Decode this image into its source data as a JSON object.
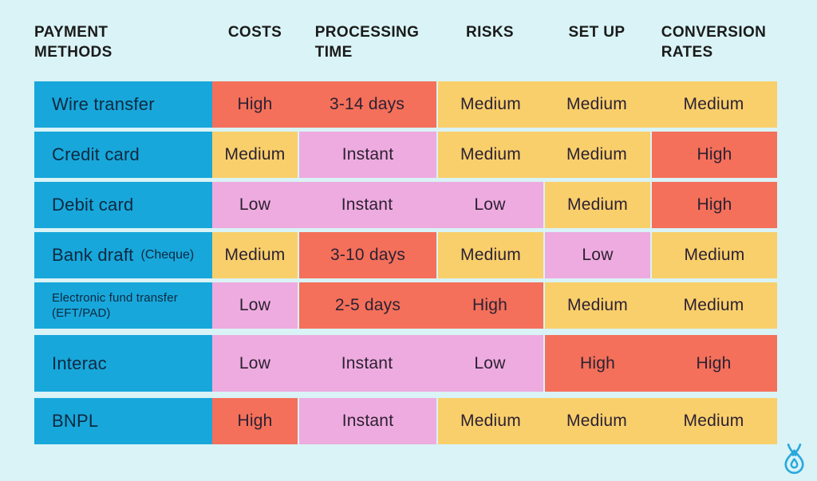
{
  "palette": {
    "page_background": "#d9f3f6",
    "method_cell": "#18a7db",
    "high_orange": "#f4705a",
    "medium_yellow": "#f9cf6b",
    "low_pink": "#eeabdf",
    "logo_blue": "#29a8dd"
  },
  "chart_data": {
    "type": "table",
    "title": "Payment methods comparison",
    "columns": [
      {
        "key": "payment_methods",
        "label": "PAYMENT\nMETHODS"
      },
      {
        "key": "costs",
        "label": "COSTS"
      },
      {
        "key": "processing_time",
        "label": "PROCESSING\nTIME"
      },
      {
        "key": "risks",
        "label": "RISKS"
      },
      {
        "key": "set_up",
        "label": "SET UP"
      },
      {
        "key": "conversion_rates",
        "label": "CONVERSION\nRATES"
      }
    ],
    "rows": [
      {
        "method": "Wire transfer",
        "note": "",
        "cells": [
          {
            "column": "costs",
            "value": "High",
            "color": "orange"
          },
          {
            "column": "processing_time",
            "value": "3-14 days",
            "color": "orange"
          },
          {
            "column": "risks",
            "value": "Medium",
            "color": "yellow"
          },
          {
            "column": "set_up",
            "value": "Medium",
            "color": "yellow"
          },
          {
            "column": "conversion_rates",
            "value": "Medium",
            "color": "yellow"
          }
        ]
      },
      {
        "method": "Credit card",
        "note": "",
        "cells": [
          {
            "column": "costs",
            "value": "Medium",
            "color": "yellow"
          },
          {
            "column": "processing_time",
            "value": "Instant",
            "color": "pink"
          },
          {
            "column": "risks",
            "value": "Medium",
            "color": "yellow"
          },
          {
            "column": "set_up",
            "value": "Medium",
            "color": "yellow"
          },
          {
            "column": "conversion_rates",
            "value": "High",
            "color": "orange"
          }
        ]
      },
      {
        "method": "Debit card",
        "note": "",
        "cells": [
          {
            "column": "costs",
            "value": "Low",
            "color": "pink"
          },
          {
            "column": "processing_time",
            "value": "Instant",
            "color": "pink"
          },
          {
            "column": "risks",
            "value": "Low",
            "color": "pink"
          },
          {
            "column": "set_up",
            "value": "Medium",
            "color": "yellow"
          },
          {
            "column": "conversion_rates",
            "value": "High",
            "color": "orange"
          }
        ]
      },
      {
        "method": "Bank draft",
        "note": "(Cheque)",
        "cells": [
          {
            "column": "costs",
            "value": "Medium",
            "color": "yellow"
          },
          {
            "column": "processing_time",
            "value": "3-10 days",
            "color": "orange"
          },
          {
            "column": "risks",
            "value": "Medium",
            "color": "yellow"
          },
          {
            "column": "set_up",
            "value": "Low",
            "color": "pink"
          },
          {
            "column": "conversion_rates",
            "value": "Medium",
            "color": "yellow"
          }
        ]
      },
      {
        "method": "Electronic fund transfer (EFT/PAD)",
        "note": "",
        "cells": [
          {
            "column": "costs",
            "value": "Low",
            "color": "pink"
          },
          {
            "column": "processing_time",
            "value": "2-5 days",
            "color": "orange"
          },
          {
            "column": "risks",
            "value": "High",
            "color": "orange"
          },
          {
            "column": "set_up",
            "value": "Medium",
            "color": "yellow"
          },
          {
            "column": "conversion_rates",
            "value": "Medium",
            "color": "yellow"
          }
        ]
      },
      {
        "method": "Interac",
        "note": "",
        "cells": [
          {
            "column": "costs",
            "value": "Low",
            "color": "pink"
          },
          {
            "column": "processing_time",
            "value": "Instant",
            "color": "pink"
          },
          {
            "column": "risks",
            "value": "Low",
            "color": "pink"
          },
          {
            "column": "set_up",
            "value": "High",
            "color": "orange"
          },
          {
            "column": "conversion_rates",
            "value": "High",
            "color": "orange"
          }
        ]
      },
      {
        "method": "BNPL",
        "note": "",
        "cells": [
          {
            "column": "costs",
            "value": "High",
            "color": "orange"
          },
          {
            "column": "processing_time",
            "value": "Instant",
            "color": "pink"
          },
          {
            "column": "risks",
            "value": "Medium",
            "color": "yellow"
          },
          {
            "column": "set_up",
            "value": "Medium",
            "color": "yellow"
          },
          {
            "column": "conversion_rates",
            "value": "Medium",
            "color": "yellow"
          }
        ]
      }
    ]
  },
  "footer": {
    "logo_icon": "onion-sprout-logo"
  }
}
